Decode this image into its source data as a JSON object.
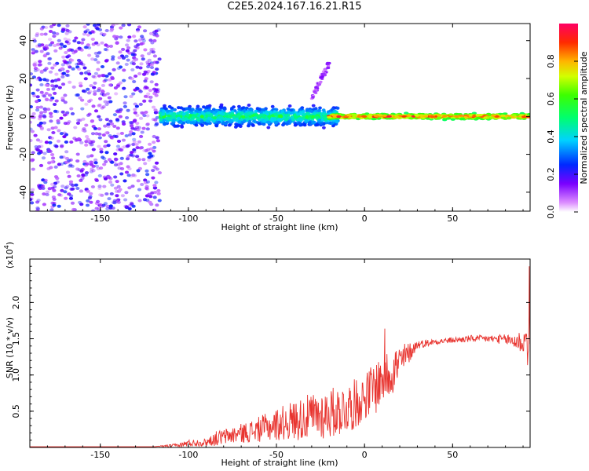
{
  "title": "C2E5.2024.167.16.21.R15",
  "chart_data": [
    {
      "type": "heatmap",
      "xlabel": "Height of straight line (km)",
      "ylabel": "Frequency (Hz)",
      "xlim": [
        -190,
        94
      ],
      "ylim": [
        -50,
        49
      ],
      "x_ticks": [
        -150,
        -100,
        -50,
        0,
        50
      ],
      "y_ticks": [
        -40,
        -20,
        0,
        20,
        40
      ],
      "colorbar": {
        "label": "Normalized spectral amplitude",
        "range": [
          0.0,
          1.0
        ],
        "ticks": [
          0.0,
          0.2,
          0.4,
          0.6,
          0.8
        ],
        "colormap": "rainbow"
      },
      "regions": [
        {
          "x_range": [
            -190,
            -116
          ],
          "freq_range": [
            -50,
            49
          ],
          "amplitude": [
            0.05,
            0.25
          ],
          "pattern": "scattered noise"
        },
        {
          "x_range": [
            -116,
            -15
          ],
          "freq_range": [
            -7,
            7
          ],
          "amplitude": [
            0.2,
            0.6
          ],
          "pattern": "broadened signal near 0 Hz"
        },
        {
          "x_range": [
            -30,
            -20
          ],
          "freq_range": [
            10,
            28
          ],
          "amplitude": [
            0.05,
            0.15
          ],
          "pattern": "faint rising streak"
        },
        {
          "x_range": [
            -20,
            94
          ],
          "freq_range": [
            -2,
            2
          ],
          "amplitude": [
            0.5,
            1.0
          ],
          "pattern": "narrow line at 0 Hz"
        }
      ]
    },
    {
      "type": "line",
      "xlabel": "Height of straight line (km)",
      "ylabel": "SNR (10 * v/v)",
      "y_multiplier": "(x10",
      "y_exponent": "4",
      "y_multiplier_close": ")",
      "xlim": [
        -190,
        94
      ],
      "ylim": [
        0,
        2.6
      ],
      "x_ticks": [
        -150,
        -100,
        -50,
        0,
        50
      ],
      "y_ticks": [
        0.5,
        1.0,
        1.5,
        2.0
      ],
      "y_tick_labels": [
        "0.5",
        "1.0",
        "1.5",
        "2.0"
      ],
      "series": [
        {
          "color": "#e8342f",
          "x": [
            -190,
            -120,
            -105,
            -100,
            -90,
            -85,
            -75,
            -65,
            -55,
            -45,
            -35,
            -25,
            -15,
            -5,
            0,
            5,
            10,
            15,
            20,
            25,
            30,
            40,
            50,
            60,
            70,
            80,
            90,
            94
          ],
          "y": [
            0.01,
            0.01,
            0.03,
            0.06,
            0.07,
            0.12,
            0.17,
            0.22,
            0.28,
            0.35,
            0.4,
            0.45,
            0.5,
            0.6,
            0.7,
            0.8,
            0.95,
            1.05,
            1.15,
            1.3,
            1.42,
            1.46,
            1.48,
            1.5,
            1.5,
            1.49,
            1.45,
            1.5
          ],
          "noise": [
            0.0,
            0.0,
            0.03,
            0.05,
            0.05,
            0.1,
            0.12,
            0.15,
            0.2,
            0.25,
            0.3,
            0.35,
            0.35,
            0.35,
            0.3,
            0.4,
            0.35,
            0.35,
            0.3,
            0.15,
            0.06,
            0.04,
            0.04,
            0.05,
            0.05,
            0.07,
            0.18,
            0.5
          ]
        }
      ],
      "peaks": [
        {
          "x": 11.5,
          "y": 1.64
        },
        {
          "x": 93.5,
          "y": 2.5
        }
      ]
    }
  ]
}
